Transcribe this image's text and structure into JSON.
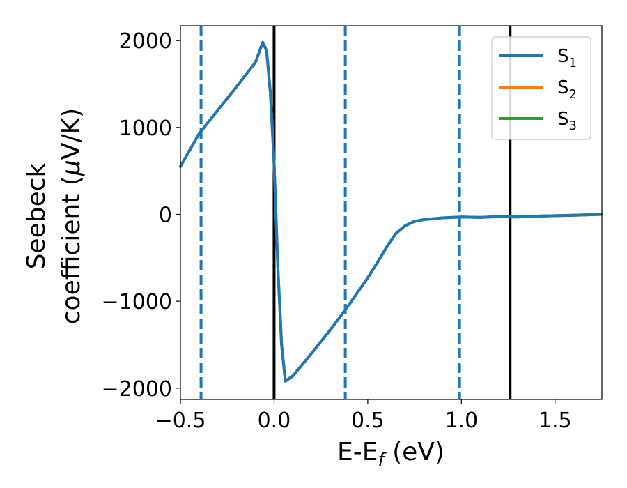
{
  "chart_data": {
    "type": "line",
    "title": "",
    "xlabel": {
      "main": "E-E",
      "sub": "f",
      "rest": " (eV)"
    },
    "ylabel": {
      "line1": "Seebeck",
      "line2_pre": "coefficient  (",
      "mu": "μ",
      "line2_post": "V/K)"
    },
    "xlim": [
      -0.5,
      1.75
    ],
    "ylim": [
      -2130,
      2170
    ],
    "xticks": [
      -0.5,
      0.0,
      0.5,
      1.0,
      1.5
    ],
    "xtick_labels": [
      "−0.5",
      "0.0",
      "0.5",
      "1.0",
      "1.5"
    ],
    "yticks": [
      2000,
      1000,
      0,
      -1000,
      -2000
    ],
    "ytick_labels": [
      "2000",
      "1000",
      "0",
      "−1000",
      "−2000"
    ],
    "grid": false,
    "legend": {
      "placement": "top-right",
      "entries": [
        {
          "base": "S",
          "sub": "1",
          "color": "#1f77b4"
        },
        {
          "base": "S",
          "sub": "2",
          "color": "#ff7f0e"
        },
        {
          "base": "S",
          "sub": "3",
          "color": "#2ca02c"
        }
      ]
    },
    "vlines": [
      {
        "x": -0.39,
        "style": "dashed",
        "color": "#1f77b4"
      },
      {
        "x": 0.0,
        "style": "solid",
        "color": "#000000"
      },
      {
        "x": 0.38,
        "style": "dashed",
        "color": "#1f77b4"
      },
      {
        "x": 0.99,
        "style": "dashed",
        "color": "#1f77b4"
      },
      {
        "x": 1.26,
        "style": "solid",
        "color": "#000000"
      }
    ],
    "series": [
      {
        "name": "S3",
        "color": "#2ca02c",
        "x": [
          -0.5,
          -0.4,
          -0.3,
          -0.2,
          -0.1,
          -0.06,
          -0.04,
          -0.02,
          0.0,
          0.02,
          0.04,
          0.06,
          0.1,
          0.2,
          0.3,
          0.4,
          0.5,
          0.55,
          0.6,
          0.65,
          0.7,
          0.75,
          0.8,
          0.9,
          1.0,
          1.1,
          1.2,
          1.3,
          1.4,
          1.5,
          1.6,
          1.75
        ],
        "values": [
          550,
          930,
          1200,
          1470,
          1750,
          1980,
          1880,
          1400,
          600,
          -600,
          -1500,
          -1920,
          -1860,
          -1600,
          -1330,
          -1040,
          -730,
          -560,
          -380,
          -220,
          -130,
          -80,
          -60,
          -40,
          -30,
          -35,
          -25,
          -30,
          -20,
          -15,
          -10,
          0
        ]
      },
      {
        "name": "S2",
        "color": "#ff7f0e",
        "x": [
          -0.5,
          -0.4,
          -0.3,
          -0.2,
          -0.1,
          -0.06,
          -0.04,
          -0.02,
          0.0,
          0.02,
          0.04,
          0.06,
          0.1,
          0.2,
          0.3,
          0.4,
          0.5,
          0.55,
          0.6,
          0.65,
          0.7,
          0.75,
          0.8,
          0.9,
          1.0,
          1.1,
          1.2,
          1.3,
          1.4,
          1.5,
          1.6,
          1.75
        ],
        "values": [
          550,
          930,
          1200,
          1470,
          1750,
          1980,
          1880,
          1400,
          600,
          -600,
          -1500,
          -1920,
          -1860,
          -1600,
          -1330,
          -1040,
          -730,
          -560,
          -380,
          -220,
          -130,
          -80,
          -60,
          -40,
          -30,
          -35,
          -25,
          -30,
          -20,
          -15,
          -10,
          0
        ]
      },
      {
        "name": "S1",
        "color": "#1f77b4",
        "x": [
          -0.5,
          -0.4,
          -0.3,
          -0.2,
          -0.1,
          -0.06,
          -0.04,
          -0.02,
          0.0,
          0.02,
          0.04,
          0.06,
          0.1,
          0.2,
          0.3,
          0.4,
          0.5,
          0.55,
          0.6,
          0.65,
          0.7,
          0.75,
          0.8,
          0.9,
          1.0,
          1.1,
          1.2,
          1.3,
          1.4,
          1.5,
          1.6,
          1.75
        ],
        "values": [
          550,
          930,
          1200,
          1470,
          1750,
          1980,
          1880,
          1400,
          600,
          -600,
          -1500,
          -1920,
          -1860,
          -1600,
          -1330,
          -1040,
          -730,
          -560,
          -380,
          -220,
          -130,
          -80,
          -60,
          -40,
          -30,
          -35,
          -25,
          -30,
          -20,
          -15,
          -10,
          0
        ]
      }
    ]
  }
}
